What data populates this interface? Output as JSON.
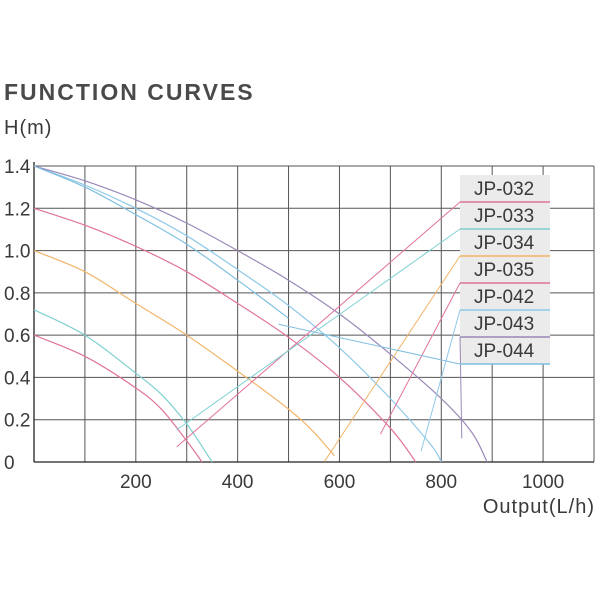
{
  "chart_data": {
    "type": "line",
    "title": "FUNCTION CURVES",
    "ylabel": "H(m)",
    "xlabel": "Output(L/h)",
    "xlim": [
      0,
      1100
    ],
    "ylim": [
      0,
      1.4
    ],
    "x_ticks": [
      {
        "value": 200,
        "label": "200"
      },
      {
        "value": 400,
        "label": "400"
      },
      {
        "value": 600,
        "label": "600"
      },
      {
        "value": 800,
        "label": "800"
      },
      {
        "value": 1000,
        "label": "1000"
      }
    ],
    "y_ticks": [
      {
        "value": 0,
        "label": "0"
      },
      {
        "value": 0.2,
        "label": "0.2"
      },
      {
        "value": 0.4,
        "label": "0.4"
      },
      {
        "value": 0.6,
        "label": "0.6"
      },
      {
        "value": 0.8,
        "label": "0.8"
      },
      {
        "value": 1.0,
        "label": "1.0"
      },
      {
        "value": 1.2,
        "label": "1.2"
      },
      {
        "value": 1.4,
        "label": "1.4"
      }
    ],
    "x_grid_step": 100,
    "y_grid_step": 0.2,
    "grid": true,
    "legend_position": "top-right",
    "series": [
      {
        "name": "JP-032",
        "color": "#e0739c",
        "x": [
          0,
          100,
          200,
          250,
          300,
          330
        ],
        "y": [
          0.6,
          0.5,
          0.35,
          0.25,
          0.1,
          0
        ]
      },
      {
        "name": "JP-033",
        "color": "#7fd0d0",
        "x": [
          0,
          100,
          200,
          250,
          300,
          350
        ],
        "y": [
          0.72,
          0.6,
          0.42,
          0.32,
          0.18,
          0
        ]
      },
      {
        "name": "JP-034",
        "color": "#f2b56b",
        "x": [
          0,
          100,
          200,
          300,
          400,
          500,
          550,
          590
        ],
        "y": [
          1.0,
          0.9,
          0.75,
          0.6,
          0.43,
          0.25,
          0.14,
          0.03
        ]
      },
      {
        "name": "JP-035",
        "color": "#e0739c",
        "x": [
          0,
          100,
          200,
          300,
          400,
          500,
          600,
          700,
          750
        ],
        "y": [
          1.2,
          1.12,
          1.02,
          0.9,
          0.75,
          0.59,
          0.4,
          0.16,
          0
        ]
      },
      {
        "name": "JP-042",
        "color": "#8fc9e8",
        "x": [
          0,
          100,
          200,
          300,
          400,
          500,
          600,
          700,
          780,
          800
        ],
        "y": [
          1.4,
          1.31,
          1.2,
          1.07,
          0.91,
          0.74,
          0.54,
          0.3,
          0.08,
          0
        ]
      },
      {
        "name": "JP-043",
        "color": "#9a88b8",
        "x": [
          0,
          100,
          200,
          300,
          400,
          500,
          600,
          700,
          800,
          860,
          890
        ],
        "y": [
          1.4,
          1.33,
          1.24,
          1.13,
          1.0,
          0.86,
          0.7,
          0.51,
          0.3,
          0.14,
          0
        ]
      },
      {
        "name": "JP-044",
        "color": "#7fbfe0",
        "x": [
          0,
          100,
          200,
          300,
          400,
          500
        ],
        "y": [
          1.4,
          1.3,
          1.17,
          1.03,
          0.86,
          0.68
        ]
      }
    ]
  }
}
